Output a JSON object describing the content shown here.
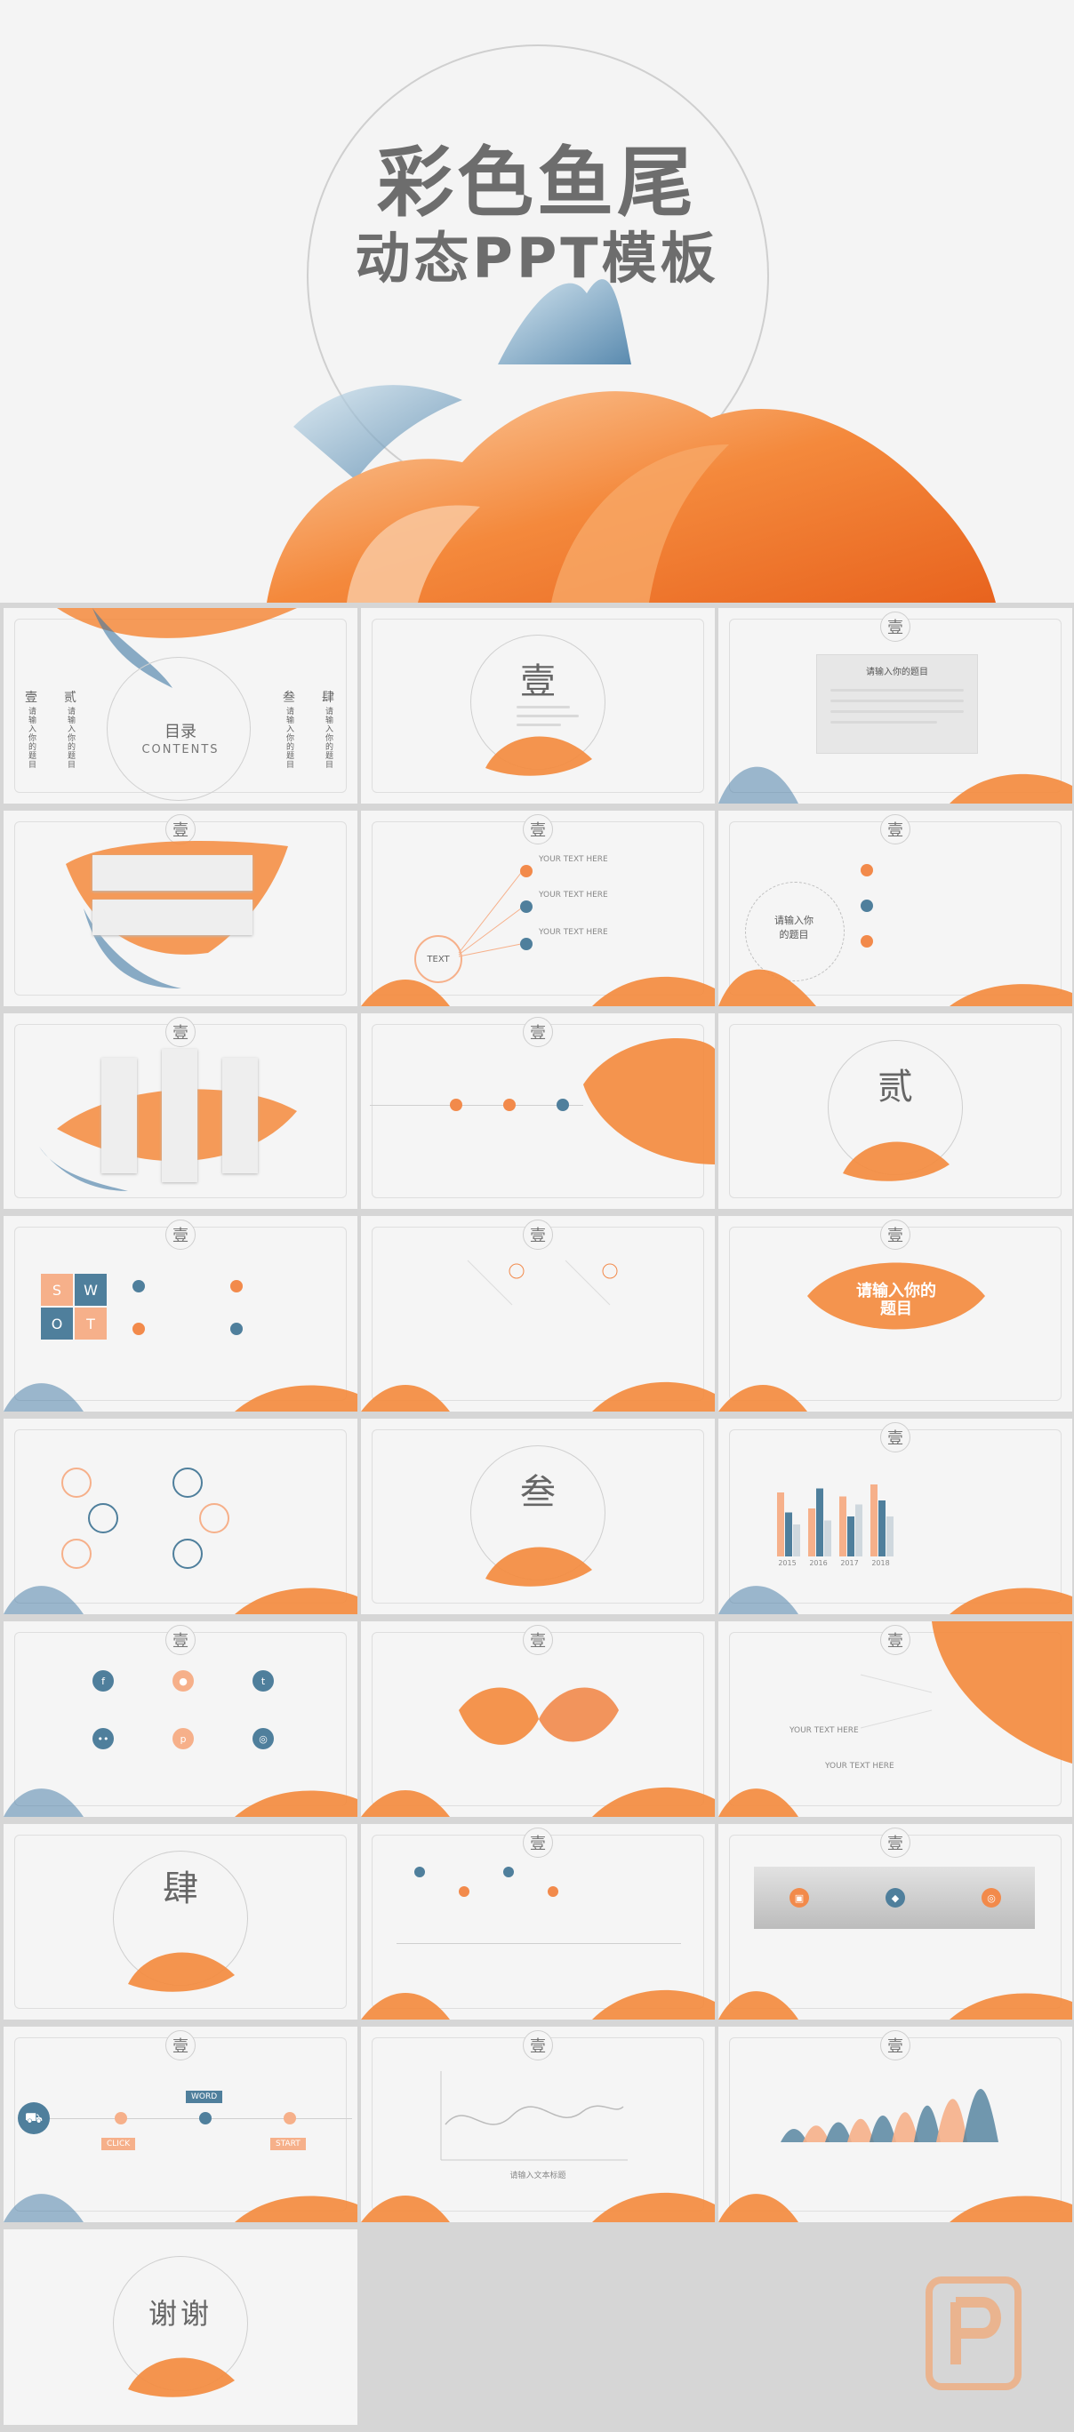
{
  "cover": {
    "title_line1": "彩色鱼尾",
    "title_line2": "动态PPT模板"
  },
  "contents": {
    "label_cn": "目录",
    "label_en": "CONTENTS",
    "chapters": [
      "壹",
      "贰",
      "叁",
      "肆"
    ],
    "placeholder": "请输入你的题目"
  },
  "chapters": {
    "one": "壹",
    "two": "贰",
    "three": "叁",
    "four": "肆"
  },
  "slides": {
    "title_box": "请输入你的题目",
    "text_label": "TEXT",
    "your_text_here": "YOUR TEXT HERE",
    "circle_topic": "请输入你的题目",
    "swot": [
      "S",
      "W",
      "O",
      "T"
    ],
    "center_topic": "请输入你的题目",
    "years": [
      "2015",
      "2016",
      "2017",
      "2018"
    ],
    "chart_caption": "请输入文本标题",
    "button_labels": [
      "WORD",
      "CLICK",
      "START"
    ]
  },
  "ending": {
    "thanks": "谢谢"
  },
  "colors": {
    "orange": "#f28a4b",
    "blue": "#4f7f9c",
    "peach": "#f6b08a"
  },
  "chart_data": {
    "type": "bar",
    "categories": [
      "2015",
      "2016",
      "2017",
      "2018"
    ],
    "series": [
      {
        "values": [
          0.8,
          0.6,
          0.75,
          0.9
        ]
      },
      {
        "values": [
          0.55,
          0.85,
          0.5,
          0.7
        ]
      },
      {
        "values": [
          0.4,
          0.45,
          0.65,
          0.5
        ]
      }
    ]
  }
}
